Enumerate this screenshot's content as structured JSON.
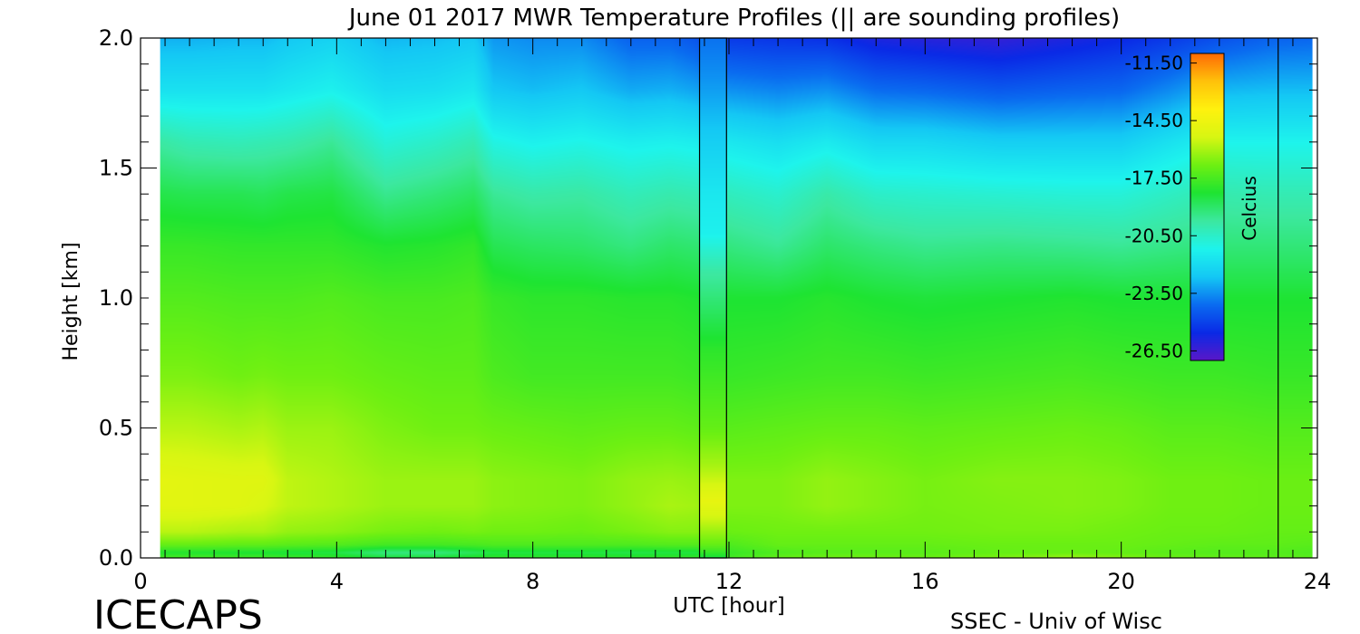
{
  "footer": {
    "logo_text": "ICECAPS",
    "credit": "SSEC - Univ of Wisc"
  },
  "chart_data": {
    "type": "heatmap",
    "title": "June 01 2017 MWR Temperature Profiles (|| are sounding profiles)",
    "xlabel": "UTC [hour]",
    "ylabel": "Height [km]",
    "xlim": [
      0,
      24
    ],
    "ylim": [
      0,
      2.0
    ],
    "xticks": [
      "0",
      "4",
      "8",
      "12",
      "16",
      "20",
      "24"
    ],
    "yticks": [
      "0.0",
      "0.5",
      "1.0",
      "1.5",
      "2.0"
    ],
    "data_x_range": [
      0.4,
      23.9
    ],
    "colorbar": {
      "label": "Celcius",
      "range": [
        -27,
        -11
      ],
      "tick_labels": [
        "-11.50",
        "-14.50",
        "-17.50",
        "-20.50",
        "-23.50",
        "-26.50"
      ]
    },
    "colormap": [
      "#5a18c8",
      "#0a2ae6",
      "#0a6cf0",
      "#14c8f4",
      "#1ef4ec",
      "#3ce8a0",
      "#1ee432",
      "#6ef012",
      "#d8f612",
      "#fff20e",
      "#ffc20a",
      "#ff6a05"
    ],
    "sounding_profiles": [
      {
        "x_start": 11.4,
        "x_end": 11.95,
        "times_utc": [
          11.4,
          11.95
        ]
      },
      {
        "x_start": 23.2,
        "x_end": 23.2,
        "times_utc": [
          23.2
        ]
      }
    ],
    "sounding_column": {
      "heights_km": [
        0.0,
        0.05,
        0.15,
        0.22,
        0.35,
        0.5,
        0.8,
        1.1,
        1.25,
        1.4,
        1.6,
        1.85,
        2.0
      ],
      "temperatures_c": [
        -18.5,
        -17.0,
        -15.5,
        -14.8,
        -16.0,
        -17.0,
        -18.0,
        -19.8,
        -21.3,
        -21.6,
        -22.4,
        -23.5,
        -24.0
      ]
    },
    "profiles": {
      "times_utc": [
        0.4,
        1.0,
        2.0,
        2.5,
        3.0,
        3.9,
        5.0,
        6.0,
        6.8,
        7.2,
        8.0,
        9.0,
        10.0,
        10.8,
        11.3,
        12.0,
        13.0,
        14.0,
        15.0,
        16.0,
        17.5,
        19.0,
        20.0,
        21.0,
        22.0,
        23.0,
        23.9
      ],
      "heights_km": [
        0.0,
        0.02,
        0.05,
        0.1,
        0.2,
        0.3,
        0.5,
        0.7,
        1.0,
        1.2,
        1.4,
        1.6,
        1.8,
        2.0
      ],
      "columns_temperature_c": [
        [
          -17.5,
          -18.2,
          -17.0,
          -15.8,
          -15.0,
          -14.9,
          -15.8,
          -16.6,
          -17.3,
          -17.8,
          -18.6,
          -19.8,
          -21.8,
          -23.0
        ],
        [
          -17.5,
          -18.2,
          -17.0,
          -15.8,
          -15.0,
          -15.0,
          -15.8,
          -16.6,
          -17.3,
          -17.8,
          -18.7,
          -20.1,
          -21.8,
          -23.0
        ],
        [
          -17.6,
          -18.3,
          -17.1,
          -16.0,
          -15.1,
          -15.1,
          -16.0,
          -16.8,
          -17.4,
          -17.9,
          -18.7,
          -20.2,
          -21.8,
          -22.9
        ],
        [
          -17.6,
          -18.3,
          -17.1,
          -16.0,
          -15.3,
          -15.1,
          -15.9,
          -16.7,
          -17.4,
          -17.9,
          -18.8,
          -20.1,
          -21.8,
          -22.9
        ],
        [
          -17.7,
          -18.4,
          -17.2,
          -16.3,
          -15.7,
          -15.7,
          -16.2,
          -16.8,
          -17.4,
          -17.9,
          -18.6,
          -20.0,
          -21.6,
          -22.6
        ],
        [
          -17.8,
          -18.5,
          -17.3,
          -16.4,
          -15.9,
          -15.9,
          -16.2,
          -16.8,
          -17.3,
          -17.9,
          -18.5,
          -19.6,
          -21.3,
          -22.3
        ],
        [
          -18.4,
          -19.3,
          -17.6,
          -16.7,
          -16.2,
          -16.2,
          -16.6,
          -17.0,
          -17.5,
          -18.2,
          -19.5,
          -20.8,
          -22.0,
          -22.9
        ],
        [
          -18.3,
          -19.3,
          -17.6,
          -16.8,
          -16.2,
          -16.2,
          -16.8,
          -17.1,
          -17.5,
          -18.1,
          -19.2,
          -20.5,
          -21.9,
          -22.8
        ],
        [
          -18.0,
          -18.8,
          -17.5,
          -16.7,
          -16.2,
          -16.2,
          -16.8,
          -17.1,
          -17.4,
          -17.9,
          -18.9,
          -20.1,
          -21.6,
          -22.6
        ],
        [
          -17.9,
          -18.5,
          -17.4,
          -16.8,
          -16.4,
          -16.4,
          -16.9,
          -17.4,
          -17.8,
          -18.7,
          -19.6,
          -21.0,
          -22.6,
          -23.4
        ],
        [
          -17.9,
          -18.5,
          -17.4,
          -16.8,
          -16.5,
          -16.5,
          -17.0,
          -17.6,
          -18.0,
          -18.9,
          -19.9,
          -21.3,
          -22.8,
          -23.6
        ],
        [
          -17.9,
          -18.5,
          -17.4,
          -16.9,
          -16.6,
          -16.6,
          -17.1,
          -17.6,
          -18.0,
          -19.0,
          -19.8,
          -21.1,
          -22.6,
          -23.6
        ],
        [
          -17.9,
          -18.6,
          -17.4,
          -16.7,
          -16.3,
          -16.3,
          -17.0,
          -17.6,
          -18.1,
          -19.3,
          -20.2,
          -21.4,
          -23.1,
          -24.3
        ],
        [
          -17.8,
          -18.5,
          -17.3,
          -16.5,
          -16.0,
          -16.2,
          -17.0,
          -17.6,
          -18.1,
          -19.0,
          -20.0,
          -21.3,
          -23.0,
          -24.3
        ],
        [
          -17.8,
          -18.5,
          -17.3,
          -16.5,
          -16.1,
          -16.3,
          -17.1,
          -17.7,
          -18.2,
          -19.1,
          -20.1,
          -21.4,
          -23.2,
          -24.6
        ],
        [
          -17.6,
          -17.8,
          -17.4,
          -16.9,
          -16.6,
          -16.6,
          -17.2,
          -17.8,
          -18.3,
          -19.3,
          -20.3,
          -21.6,
          -23.5,
          -25.2
        ],
        [
          -17.0,
          -17.4,
          -17.0,
          -16.8,
          -16.6,
          -16.6,
          -17.1,
          -17.7,
          -18.3,
          -19.6,
          -20.6,
          -21.9,
          -23.7,
          -25.3
        ],
        [
          -16.8,
          -17.2,
          -17.0,
          -16.8,
          -16.3,
          -16.3,
          -17.0,
          -17.6,
          -18.1,
          -19.0,
          -19.9,
          -21.5,
          -23.5,
          -25.4
        ],
        [
          -16.8,
          -17.2,
          -17.0,
          -16.8,
          -16.5,
          -16.5,
          -17.0,
          -17.6,
          -18.3,
          -19.3,
          -20.5,
          -22.1,
          -24.1,
          -25.9
        ],
        [
          -16.9,
          -17.2,
          -17.0,
          -16.8,
          -16.7,
          -16.7,
          -17.1,
          -17.7,
          -18.4,
          -19.5,
          -20.6,
          -22.1,
          -24.2,
          -26.1
        ],
        [
          -16.6,
          -17.0,
          -16.9,
          -16.7,
          -16.6,
          -16.5,
          -17.0,
          -17.6,
          -18.3,
          -19.4,
          -20.7,
          -22.4,
          -24.5,
          -26.3
        ],
        [
          -16.2,
          -16.9,
          -16.9,
          -16.7,
          -16.5,
          -16.5,
          -16.9,
          -17.5,
          -18.2,
          -19.5,
          -20.8,
          -22.4,
          -24.3,
          -25.9
        ],
        [
          -16.5,
          -17.0,
          -16.9,
          -16.8,
          -16.6,
          -16.6,
          -17.0,
          -17.6,
          -18.3,
          -19.6,
          -20.8,
          -22.4,
          -24.2,
          -25.6
        ],
        [
          -16.9,
          -17.2,
          -17.0,
          -16.9,
          -16.8,
          -16.8,
          -17.2,
          -17.7,
          -18.3,
          -19.4,
          -20.4,
          -21.8,
          -23.6,
          -25.2
        ],
        [
          -17.0,
          -17.3,
          -17.1,
          -16.9,
          -16.8,
          -16.8,
          -17.2,
          -17.7,
          -18.3,
          -19.2,
          -20.0,
          -21.2,
          -22.9,
          -24.7
        ],
        [
          -17.1,
          -17.3,
          -17.1,
          -17.0,
          -16.9,
          -16.9,
          -17.3,
          -17.8,
          -18.3,
          -19.2,
          -20.1,
          -21.2,
          -22.8,
          -24.3
        ],
        [
          -17.2,
          -17.4,
          -17.2,
          -17.0,
          -16.9,
          -16.9,
          -17.3,
          -17.8,
          -18.3,
          -19.2,
          -20.1,
          -21.2,
          -22.8,
          -24.2
        ]
      ]
    }
  }
}
